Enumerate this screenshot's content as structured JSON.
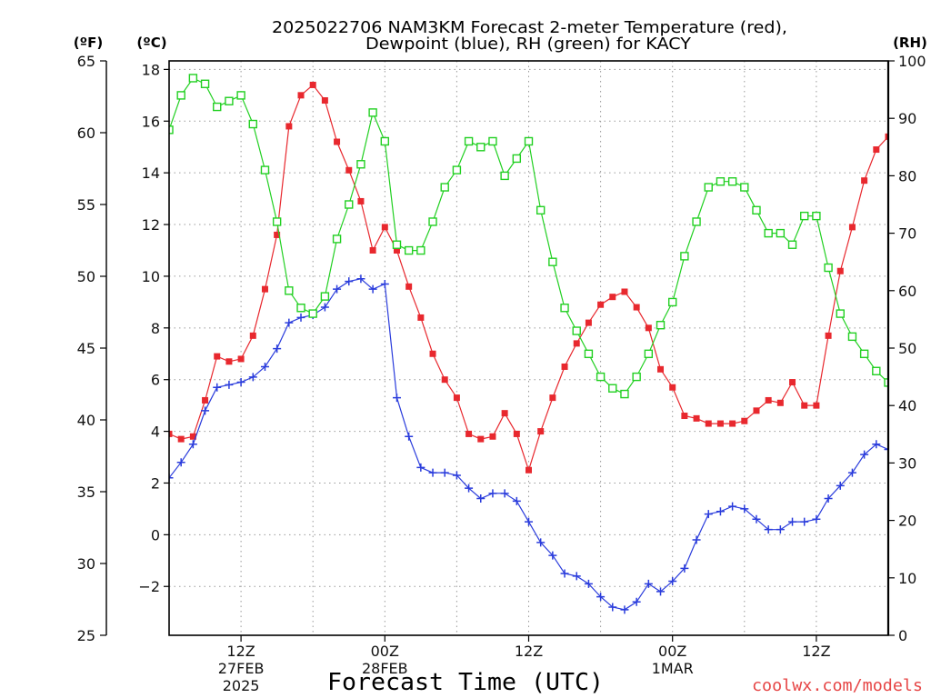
{
  "chart_data": {
    "type": "line",
    "title": [
      "2025022706 NAM3KM Forecast 2-meter Temperature (red),",
      "Dewpoint (blue), RH (green) for KACY"
    ],
    "xlabel": "Forecast Time (UTC)",
    "credit": "coolwx.com/models",
    "credit_color": "#e64646",
    "grid": true,
    "x_range": [
      "2025-02-27T06:00Z",
      "2025-03-01T18:00Z"
    ],
    "x_ticks": [
      {
        "time": "2025-02-27T12:00Z",
        "label": [
          "12Z",
          "27FEB",
          "2025"
        ]
      },
      {
        "time": "2025-02-28T00:00Z",
        "label": [
          "00Z",
          "28FEB"
        ]
      },
      {
        "time": "2025-02-28T12:00Z",
        "label": [
          "12Z"
        ]
      },
      {
        "time": "2025-03-01T00:00Z",
        "label": [
          "00Z",
          "1MAR"
        ]
      },
      {
        "time": "2025-03-01T12:00Z",
        "label": [
          "12Z"
        ]
      }
    ],
    "y_axes": [
      {
        "header": "(ºF)",
        "range": [
          25,
          65
        ],
        "ticks": [
          25,
          30,
          35,
          40,
          45,
          50,
          55,
          60,
          65
        ],
        "tick_labels": [
          "25",
          "30",
          "35",
          "40",
          "45",
          "50",
          "55",
          "60",
          "65"
        ]
      },
      {
        "header": "(ºC)",
        "range": [
          -3.89,
          18.33
        ],
        "ticks": [
          -2,
          0,
          2,
          4,
          6,
          8,
          10,
          12,
          14,
          16,
          18
        ],
        "tick_labels": [
          "−2",
          "0",
          "2",
          "4",
          "6",
          "8",
          "10",
          "12",
          "14",
          "16",
          "18"
        ]
      },
      {
        "header": "(RH)",
        "range": [
          0,
          100
        ],
        "ticks": [
          0,
          10,
          20,
          30,
          40,
          50,
          60,
          70,
          80,
          90,
          100
        ],
        "tick_labels": [
          "0",
          "10",
          "20",
          "30",
          "40",
          "50",
          "60",
          "70",
          "80",
          "90",
          "100"
        ]
      }
    ],
    "x": [
      "2025-02-27T06:00Z",
      "2025-02-27T07:00Z",
      "2025-02-27T08:00Z",
      "2025-02-27T09:00Z",
      "2025-02-27T10:00Z",
      "2025-02-27T11:00Z",
      "2025-02-27T12:00Z",
      "2025-02-27T13:00Z",
      "2025-02-27T14:00Z",
      "2025-02-27T15:00Z",
      "2025-02-27T16:00Z",
      "2025-02-27T17:00Z",
      "2025-02-27T18:00Z",
      "2025-02-27T19:00Z",
      "2025-02-27T20:00Z",
      "2025-02-27T21:00Z",
      "2025-02-27T22:00Z",
      "2025-02-27T23:00Z",
      "2025-02-28T00:00Z",
      "2025-02-28T01:00Z",
      "2025-02-28T02:00Z",
      "2025-02-28T03:00Z",
      "2025-02-28T04:00Z",
      "2025-02-28T05:00Z",
      "2025-02-28T06:00Z",
      "2025-02-28T07:00Z",
      "2025-02-28T08:00Z",
      "2025-02-28T09:00Z",
      "2025-02-28T10:00Z",
      "2025-02-28T11:00Z",
      "2025-02-28T12:00Z",
      "2025-02-28T13:00Z",
      "2025-02-28T14:00Z",
      "2025-02-28T15:00Z",
      "2025-02-28T16:00Z",
      "2025-02-28T17:00Z",
      "2025-02-28T18:00Z",
      "2025-02-28T19:00Z",
      "2025-02-28T20:00Z",
      "2025-02-28T21:00Z",
      "2025-02-28T22:00Z",
      "2025-02-28T23:00Z",
      "2025-03-01T00:00Z",
      "2025-03-01T01:00Z",
      "2025-03-01T02:00Z",
      "2025-03-01T03:00Z",
      "2025-03-01T04:00Z",
      "2025-03-01T05:00Z",
      "2025-03-01T06:00Z",
      "2025-03-01T07:00Z",
      "2025-03-01T08:00Z",
      "2025-03-01T09:00Z",
      "2025-03-01T10:00Z",
      "2025-03-01T11:00Z",
      "2025-03-01T12:00Z",
      "2025-03-01T13:00Z",
      "2025-03-01T14:00Z",
      "2025-03-01T15:00Z",
      "2025-03-01T16:00Z",
      "2025-03-01T17:00Z",
      "2025-03-01T18:00Z"
    ],
    "series": [
      {
        "color": "#e8282e",
        "marker": "filled-square",
        "y_axis": 1,
        "values": [
          3.9,
          3.7,
          3.8,
          5.2,
          6.9,
          6.7,
          6.8,
          7.7,
          9.5,
          11.6,
          15.8,
          17.0,
          17.4,
          16.8,
          15.2,
          14.1,
          12.9,
          11.0,
          11.9,
          11.0,
          9.6,
          8.4,
          7.0,
          6.0,
          5.3,
          3.9,
          3.7,
          3.8,
          4.7,
          3.9,
          2.5,
          4.0,
          5.3,
          6.5,
          7.4,
          8.2,
          8.9,
          9.2,
          9.4,
          8.8,
          8.0,
          6.4,
          5.7,
          4.6,
          4.5,
          4.3,
          4.3,
          4.3,
          4.4,
          4.8,
          5.2,
          5.1,
          5.9,
          5.0,
          5.0,
          7.7,
          10.2,
          11.9,
          13.7,
          14.9,
          15.4
        ]
      },
      {
        "color": "#2a3cdc",
        "marker": "plus",
        "y_axis": 1,
        "values": [
          2.2,
          2.8,
          3.5,
          4.8,
          5.7,
          5.8,
          5.9,
          6.1,
          6.5,
          7.2,
          8.2,
          8.4,
          8.5,
          8.8,
          9.5,
          9.8,
          9.9,
          9.5,
          9.7,
          5.3,
          3.8,
          2.6,
          2.4,
          2.4,
          2.3,
          1.8,
          1.4,
          1.6,
          1.6,
          1.3,
          0.5,
          -0.3,
          -0.8,
          -1.5,
          -1.6,
          -1.9,
          -2.4,
          -2.8,
          -2.9,
          -2.6,
          -1.9,
          -2.2,
          -1.8,
          -1.3,
          -0.2,
          0.8,
          0.9,
          1.1,
          1.0,
          0.6,
          0.2,
          0.2,
          0.5,
          0.5,
          0.6,
          1.4,
          1.9,
          2.4,
          3.1,
          3.5,
          3.3
        ]
      },
      {
        "color": "#22d022",
        "marker": "open-square",
        "y_axis": 2,
        "values": [
          88,
          94,
          97,
          96,
          92,
          93,
          94,
          89,
          81,
          72,
          60,
          57,
          56,
          59,
          69,
          75,
          82,
          91,
          86,
          68,
          67,
          67,
          72,
          78,
          81,
          86,
          85,
          86,
          80,
          83,
          86,
          74,
          65,
          57,
          53,
          49,
          45,
          43,
          42,
          45,
          49,
          54,
          58,
          66,
          72,
          78,
          79,
          79,
          78,
          74,
          70,
          70,
          68,
          73,
          73,
          64,
          56,
          52,
          49,
          46,
          44
        ]
      }
    ]
  }
}
